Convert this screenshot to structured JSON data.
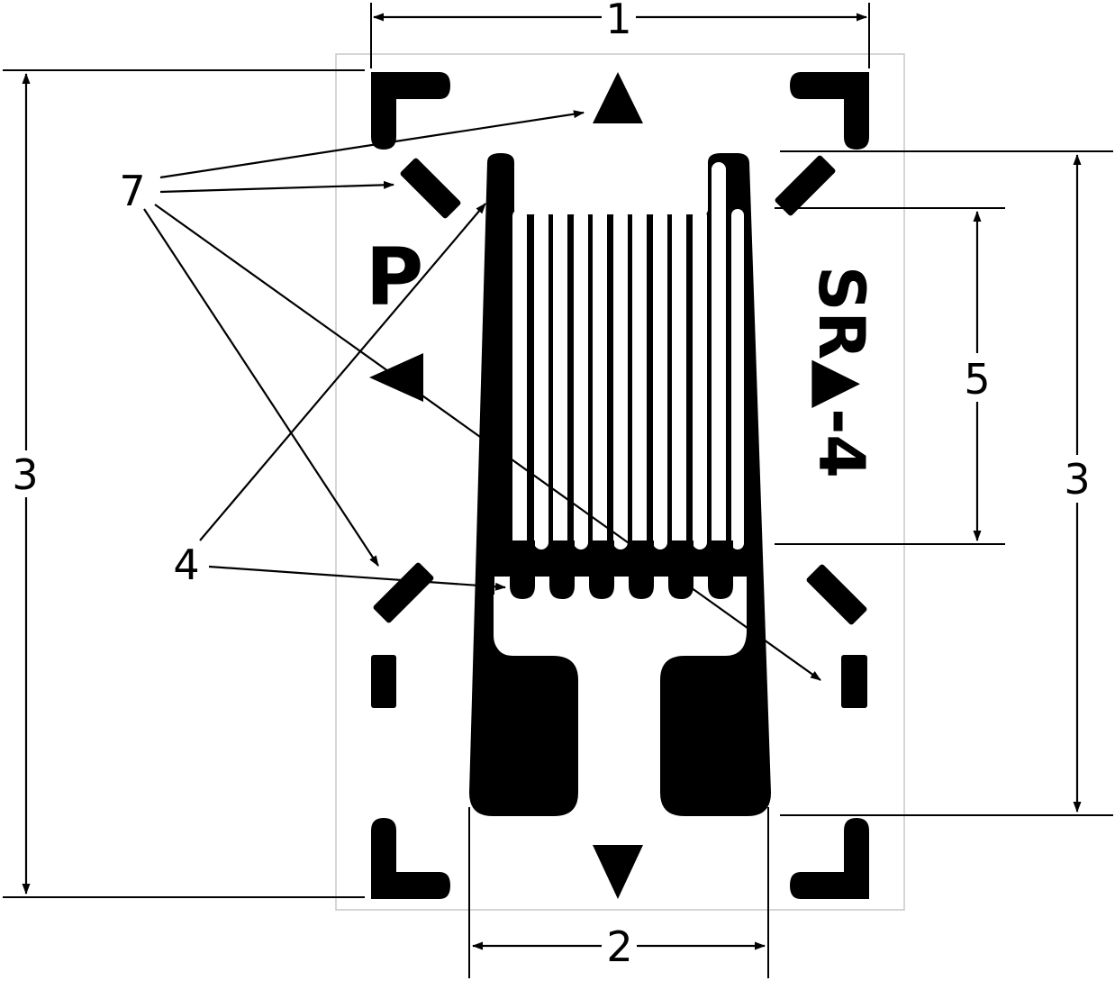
{
  "labels": {
    "overall_width": "1",
    "tab_width": "2",
    "overall_length_left": "3",
    "overall_length_right": "3",
    "grid_element": "4",
    "active_length": "5",
    "alignment_marks": "7"
  },
  "gauge_marking": {
    "letter": "P",
    "code": "SR▲-4"
  },
  "colors": {
    "foil": "#000000",
    "outline": "#c8c8c8",
    "background": "#ffffff"
  }
}
